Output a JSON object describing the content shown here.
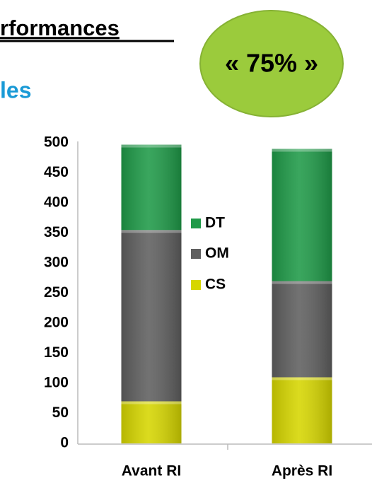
{
  "chart_data": {
    "type": "stacked_bar",
    "title": "rformances",
    "subtitle": "les",
    "annotation": "« 75% »",
    "categories": [
      "Avant RI",
      "Après RI"
    ],
    "series": [
      {
        "name": "CS",
        "color": "#d6d600",
        "values": [
          70,
          110
        ]
      },
      {
        "name": "OM",
        "color": "#5f5f5f",
        "values": [
          285,
          160
        ]
      },
      {
        "name": "DT",
        "color": "#1f9a48",
        "values": [
          142,
          220
        ]
      }
    ],
    "ylim": [
      0,
      500
    ],
    "yticks": [
      0,
      50,
      100,
      150,
      200,
      250,
      300,
      350,
      400,
      450,
      500
    ],
    "grid": false,
    "legend": "center"
  }
}
